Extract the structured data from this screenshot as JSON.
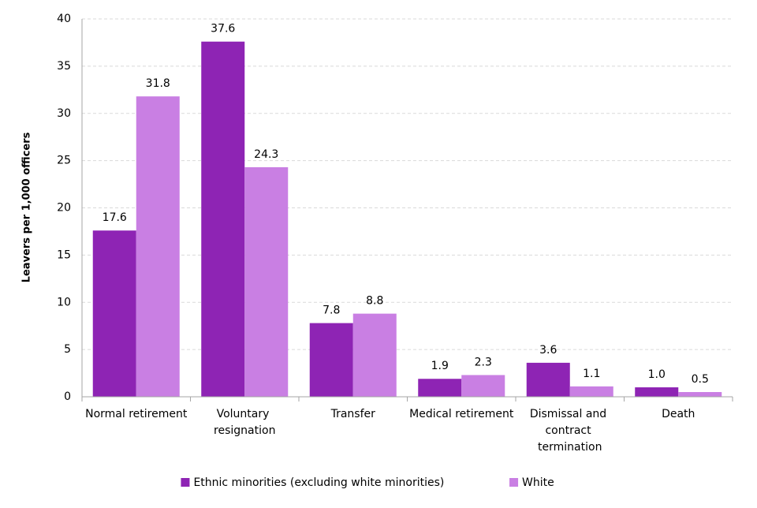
{
  "chart_data": {
    "type": "bar",
    "y_label": "Leavers per 1,000 officers",
    "categories": [
      "Normal retirement",
      "Voluntary resignation",
      "Transfer",
      "Medical retirement",
      "Dismissal and contract termination",
      "Death"
    ],
    "series": [
      {
        "name": "Ethnic minorities (excluding white minorities)",
        "color": "#8e24b4",
        "values": [
          17.6,
          37.6,
          7.8,
          1.9,
          3.6,
          1.0
        ],
        "value_labels": [
          "17.6",
          "37.6",
          "7.8",
          "1.9",
          "3.6",
          "1.0"
        ]
      },
      {
        "name": "White",
        "color": "#c97fe3",
        "values": [
          31.8,
          24.3,
          8.8,
          2.3,
          1.1,
          0.5
        ],
        "value_labels": [
          "31.8",
          "24.3",
          "8.8",
          "2.3",
          "1.1",
          "0.5"
        ]
      }
    ],
    "ylim": [
      0,
      40
    ],
    "yticks": [
      0,
      5,
      10,
      15,
      20,
      25,
      30,
      35,
      40
    ],
    "grid": true,
    "legend": "bottom"
  }
}
